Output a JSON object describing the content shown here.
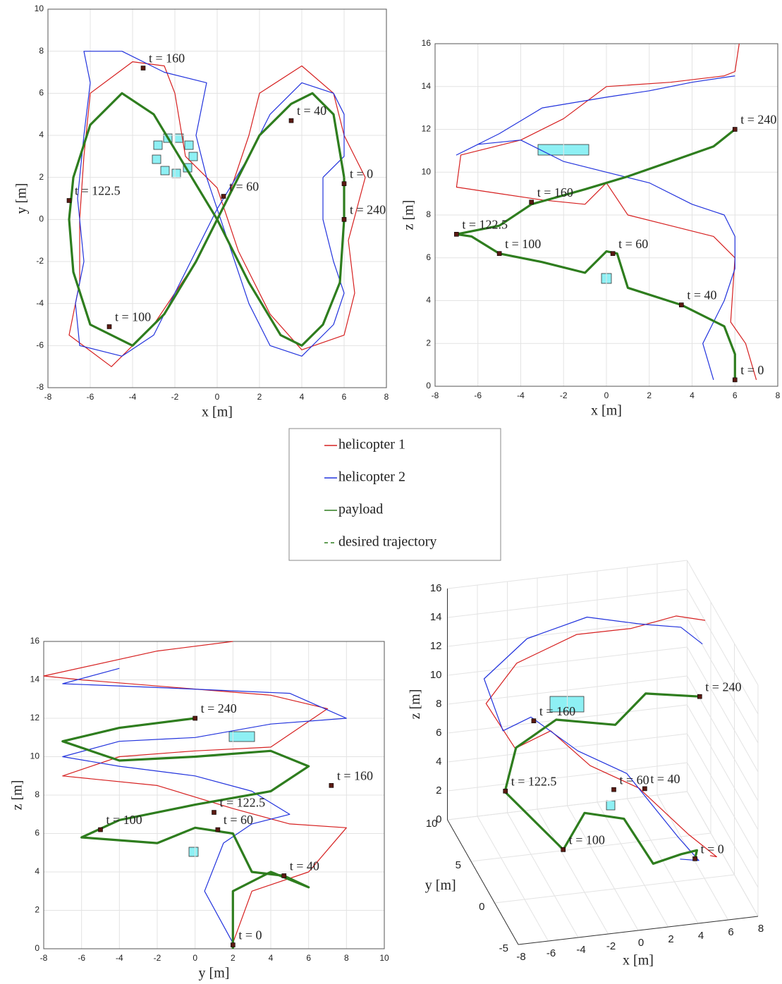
{
  "legend": [
    {
      "name": "helicopter 1",
      "color": "#d62020",
      "dash": false
    },
    {
      "name": "helicopter 2",
      "color": "#2233dd",
      "dash": false
    },
    {
      "name": "payload",
      "color": "#2e7d1e",
      "dash": false
    },
    {
      "name": "desired trajectory",
      "color": "#2e7d1e",
      "dash": true
    }
  ],
  "chart_data": [
    {
      "type": "line",
      "xlabel": "x [m]",
      "ylabel": "y [m]",
      "grid": true,
      "xlim": [
        -8,
        8
      ],
      "ylim": [
        -8,
        10
      ],
      "xticks": [
        -8,
        -6,
        -4,
        -2,
        0,
        2,
        4,
        6,
        8
      ],
      "yticks": [
        -8,
        -6,
        -4,
        -2,
        0,
        2,
        4,
        6,
        8,
        10
      ],
      "series": [
        {
          "color": "#d62020",
          "x": [
            7,
            6.2,
            6.5,
            6,
            4,
            2.5,
            1,
            0,
            -1.5,
            -2,
            -2.5,
            -4,
            -6,
            -6.3,
            -6.5,
            -6.5,
            -7,
            -5,
            -3,
            -1,
            0.5,
            1.5,
            2,
            4,
            5.5,
            6,
            7
          ],
          "values": [
            2,
            -1,
            -3.5,
            -5.5,
            -6.2,
            -4.5,
            -1.5,
            1.5,
            3,
            6,
            7.3,
            7.5,
            6,
            3,
            0,
            -3,
            -5.5,
            -7,
            -5,
            -2,
            1,
            4,
            6,
            7.3,
            6,
            4,
            2
          ]
        },
        {
          "color": "#2233dd",
          "x": [
            5,
            5,
            5.5,
            6,
            5.5,
            4,
            2.5,
            1.5,
            0.5,
            -0.5,
            -1,
            -0.5,
            -2.5,
            -4.5,
            -6.3,
            -6,
            -6.3,
            -6.6,
            -6.3,
            -6.7,
            -6.5,
            -4.5,
            -3,
            -1.5,
            0,
            1.5,
            2.5,
            4,
            5.5,
            6,
            6,
            5
          ],
          "values": [
            2,
            0,
            -2,
            -3.5,
            -5,
            -6.5,
            -6,
            -4,
            -1,
            2,
            4,
            6.5,
            7,
            8,
            8,
            6.5,
            4,
            1,
            -2,
            -4,
            -6,
            -6.5,
            -5.5,
            -2.5,
            0.5,
            3,
            5,
            6.5,
            6,
            5,
            3,
            2
          ]
        },
        {
          "color": "#2e7d1e",
          "x": [
            6,
            6,
            5.8,
            5,
            4,
            3,
            1.5,
            0,
            -1.5,
            -3,
            -4.5,
            -6,
            -6.8,
            -7,
            -6.8,
            -6,
            -4,
            -2.5,
            -1,
            0.5,
            2,
            3.5,
            4.5,
            5.5,
            6
          ],
          "values": [
            2,
            0,
            -3,
            -5,
            -6,
            -5.5,
            -3,
            0,
            2.5,
            5,
            6,
            4.5,
            2,
            0,
            -2.5,
            -5,
            -6,
            -4.5,
            -2,
            1,
            4,
            5.5,
            6,
            5,
            2
          ]
        }
      ],
      "annotations": [
        {
          "text": "t = 160",
          "x": -3.5,
          "y": 7.2
        },
        {
          "text": "t = 40",
          "x": 3.5,
          "y": 4.7
        },
        {
          "text": "t = 0",
          "x": 6,
          "y": 1.7
        },
        {
          "text": "t = 60",
          "x": 0.3,
          "y": 1.1
        },
        {
          "text": "t = 240",
          "x": 6,
          "y": 0
        },
        {
          "text": "t = 122.5",
          "x": -7,
          "y": 0.9
        },
        {
          "text": "t = 100",
          "x": -5.1,
          "y": -5.1
        }
      ]
    },
    {
      "type": "line",
      "xlabel": "x [m]",
      "ylabel": "z [m]",
      "grid": true,
      "xlim": [
        -8,
        8
      ],
      "ylim": [
        0,
        16
      ],
      "xticks": [
        -8,
        -6,
        -4,
        -2,
        0,
        2,
        4,
        6,
        8
      ],
      "yticks": [
        0,
        2,
        4,
        6,
        8,
        10,
        12,
        14,
        16
      ],
      "series": [
        {
          "color": "#d62020",
          "x": [
            7,
            6.5,
            5.8,
            6,
            5,
            3,
            1,
            0,
            -1,
            -3,
            -5,
            -7,
            -6.8,
            -4,
            -2,
            0,
            3,
            5.5,
            6,
            6.2
          ],
          "values": [
            0.3,
            2,
            3,
            6,
            7,
            7.5,
            8,
            9.5,
            8.5,
            8.7,
            9,
            9.3,
            10.8,
            11.5,
            12.5,
            14,
            14.2,
            14.5,
            14.7,
            16
          ]
        },
        {
          "color": "#2233dd",
          "x": [
            5,
            4.5,
            5.5,
            6,
            6,
            5.5,
            4,
            2,
            0,
            -2,
            -4,
            -6,
            -7,
            -5,
            -3,
            0,
            2,
            4,
            6
          ],
          "values": [
            0.3,
            2,
            4,
            5.5,
            7,
            8,
            8.5,
            9.5,
            10,
            10.5,
            11.5,
            11.3,
            10.8,
            11.8,
            13,
            13.5,
            13.8,
            14.2,
            14.5
          ]
        },
        {
          "color": "#2e7d1e",
          "x": [
            6,
            6,
            5.5,
            3.5,
            1,
            0.5,
            0,
            -1,
            -3,
            -5,
            -6.3,
            -7,
            -5,
            -3.5,
            -1,
            1,
            3,
            5,
            6
          ],
          "values": [
            0.2,
            1.5,
            2.8,
            3.8,
            4.6,
            6.2,
            6.3,
            5.3,
            5.8,
            6.2,
            7,
            7.1,
            7.5,
            8.5,
            9.2,
            9.8,
            10.5,
            11.2,
            12
          ]
        }
      ],
      "annotations": [
        {
          "text": "t = 240",
          "x": 6,
          "y": 12
        },
        {
          "text": "t = 160",
          "x": -3.5,
          "y": 8.6
        },
        {
          "text": "t = 122.5",
          "x": -7,
          "y": 7.1
        },
        {
          "text": "t = 100",
          "x": -5,
          "y": 6.2
        },
        {
          "text": "t = 60",
          "x": 0.3,
          "y": 6.2
        },
        {
          "text": "t = 40",
          "x": 3.5,
          "y": 3.8
        },
        {
          "text": "t = 0",
          "x": 6,
          "y": 0.3
        }
      ]
    },
    {
      "type": "line",
      "xlabel": "y [m]",
      "ylabel": "z [m]",
      "grid": true,
      "xlim": [
        -8,
        10
      ],
      "ylim": [
        0,
        16
      ],
      "xticks": [
        -8,
        -6,
        -4,
        -2,
        0,
        2,
        4,
        6,
        8,
        10
      ],
      "yticks": [
        0,
        2,
        4,
        6,
        8,
        10,
        12,
        14,
        16
      ],
      "series": [
        {
          "color": "#d62020",
          "x": [
            2,
            3,
            6,
            8,
            5,
            2,
            -2,
            -7,
            -4,
            0,
            4,
            7,
            4,
            -6,
            -8,
            -2,
            2
          ],
          "values": [
            0.3,
            3,
            4,
            6.3,
            6.5,
            7.3,
            8.5,
            9,
            10,
            10.3,
            10.5,
            12.5,
            13.2,
            14,
            14.2,
            15.5,
            16
          ]
        },
        {
          "color": "#2233dd",
          "x": [
            2,
            0.5,
            1.5,
            3,
            5,
            3,
            0,
            -4,
            -7,
            -4,
            0,
            4,
            8,
            5,
            -2,
            -7,
            -4
          ],
          "values": [
            0.3,
            3,
            5.5,
            6.5,
            7,
            8.2,
            9,
            9.5,
            10,
            10.8,
            11,
            11.7,
            12,
            13.3,
            13.6,
            13.8,
            14.6
          ]
        },
        {
          "color": "#2e7d1e",
          "x": [
            2,
            2,
            4,
            6,
            4.7,
            3,
            2,
            0,
            -2,
            -6,
            -4,
            0,
            4,
            6,
            4,
            0,
            -4,
            -7,
            -4,
            0
          ],
          "values": [
            0,
            3,
            4,
            3.2,
            3.8,
            4,
            6,
            6.3,
            5.5,
            5.8,
            6.7,
            7.5,
            8.2,
            9.5,
            10.3,
            10,
            9.8,
            10.8,
            11.5,
            12
          ]
        }
      ],
      "annotations": [
        {
          "text": "t = 240",
          "x": 0,
          "y": 12
        },
        {
          "text": "t = 122.5",
          "x": 1,
          "y": 7.1
        },
        {
          "text": "t = 160",
          "x": 7.2,
          "y": 8.5
        },
        {
          "text": "t = 100",
          "x": -5,
          "y": 6.2
        },
        {
          "text": "t = 60",
          "x": 1.2,
          "y": 6.2
        },
        {
          "text": "t = 40",
          "x": 4.7,
          "y": 3.8
        },
        {
          "text": "t = 0",
          "x": 2,
          "y": 0.2
        }
      ]
    },
    {
      "type": "line3d",
      "xlabel": "x [m]",
      "ylabel": "y [m]",
      "zlabel": "z [m]",
      "grid": true,
      "xlim": [
        -8,
        8
      ],
      "ylim": [
        -5,
        10
      ],
      "zlim": [
        0,
        16
      ],
      "xticks": [
        -8,
        -6,
        -4,
        -2,
        0,
        2,
        4,
        6,
        8
      ],
      "yticks": [
        -5,
        0,
        5,
        10
      ],
      "zticks": [
        0,
        2,
        4,
        6,
        8,
        10,
        12,
        14,
        16
      ],
      "series": [
        {
          "color": "#d62020",
          "x": [
            7,
            6.5,
            4,
            1,
            -1,
            -3,
            -6,
            -7,
            -4,
            0,
            3,
            6,
            7
          ],
          "y": [
            2,
            -1,
            -3,
            -2,
            2,
            4,
            2,
            5,
            8,
            8,
            6,
            6,
            3
          ],
          "z": [
            0.3,
            2,
            5,
            8,
            7.5,
            9,
            9.3,
            10.8,
            11.5,
            13,
            14.2,
            14.7,
            16
          ]
        },
        {
          "color": "#2233dd",
          "x": [
            5,
            5,
            3,
            0.5,
            -1.5,
            -4,
            -6.5,
            -6.5,
            -3,
            1,
            4,
            6,
            6.5
          ],
          "y": [
            2,
            -2,
            -4,
            -1,
            3,
            5,
            3,
            7,
            9,
            9,
            7,
            5,
            2
          ],
          "z": [
            0.3,
            2.5,
            5.5,
            8.5,
            8,
            9.5,
            10,
            11.3,
            12.5,
            13.5,
            13.8,
            14.5,
            15
          ]
        },
        {
          "color": "#2e7d1e",
          "x": [
            6,
            5.5,
            3.5,
            1,
            0,
            -2,
            -5,
            -7,
            -5,
            -2,
            1,
            3.5,
            6
          ],
          "y": [
            2,
            0,
            -3,
            -5,
            -2,
            0,
            -5,
            1,
            5,
            6,
            3,
            4.5,
            1
          ],
          "z": [
            0.2,
            2,
            3.7,
            4.5,
            6,
            5.5,
            6.2,
            7,
            7.5,
            8.5,
            9.5,
            10.5,
            12
          ]
        }
      ],
      "annotations": [
        {
          "text": "t = 160",
          "x": -3.5,
          "y": 6,
          "z": 8.6
        },
        {
          "text": "t = 240",
          "x": 6,
          "y": 1,
          "z": 12
        },
        {
          "text": "t = 122.5",
          "x": -7,
          "y": 0.9,
          "z": 7.1
        },
        {
          "text": "t = 100",
          "x": -5,
          "y": -5,
          "z": 6.2
        },
        {
          "text": "t = 60",
          "x": 0.3,
          "y": 1.1,
          "z": 6.2
        },
        {
          "text": "t = 40",
          "x": 3.5,
          "y": 4.7,
          "z": 3.8
        },
        {
          "text": "t = 0",
          "x": 6,
          "y": 2,
          "z": 0.2
        }
      ]
    }
  ]
}
